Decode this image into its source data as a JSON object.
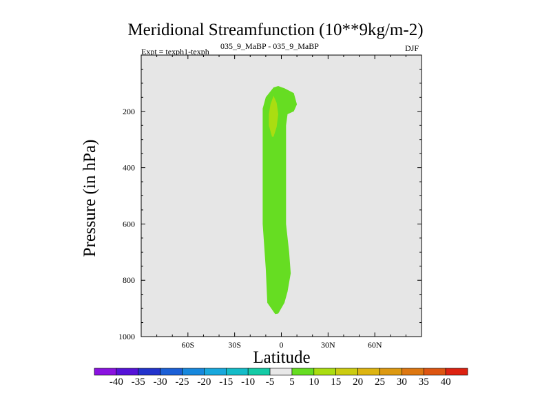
{
  "title": "Meridional Streamfunction (10**9kg/m-2)",
  "subtitle_left": "Expt = texph1-texph",
  "subtitle_super": "035_9_MaBP - 035_9_MaBP",
  "subtitle_right": "DJF",
  "colors": {
    "background": "#e6e6e6",
    "shade_5_10": "#66dd22",
    "shade_10_15": "#aadd11",
    "colorbar": [
      "#8a12e0",
      "#5512d8",
      "#2233cc",
      "#1b5fd6",
      "#1788dd",
      "#18a8dd",
      "#14bcc8",
      "#15cba6",
      "#e8e8e8",
      "#66dd22",
      "#aadd11",
      "#cccc11",
      "#ddb411",
      "#dd9911",
      "#dd7711",
      "#dd5511",
      "#dd2211"
    ]
  },
  "chart_data": {
    "type": "contour",
    "title": "Meridional Streamfunction (10**9kg/m-2)",
    "xlabel": "Latitude",
    "ylabel": "Pressure (in hPa)",
    "xlim": [
      -90,
      90
    ],
    "ylim": [
      1000,
      0
    ],
    "x_ticks": [
      -60,
      -30,
      0,
      30,
      60
    ],
    "x_tick_labels": [
      "60S",
      "30S",
      "0",
      "30N",
      "60N"
    ],
    "y_ticks": [
      200,
      400,
      600,
      800,
      1000
    ],
    "y_tick_labels": [
      "200",
      "400",
      "600",
      "800",
      "1000"
    ],
    "colorbar_levels": [
      -40,
      -35,
      -30,
      -25,
      -20,
      -15,
      -10,
      -5,
      5,
      10,
      15,
      20,
      25,
      30,
      35,
      40
    ],
    "colorbar_labels": [
      "-40",
      "-35",
      "-30",
      "-25",
      "-20",
      "-15",
      "-10",
      "-5",
      "5",
      "10",
      "15",
      "20",
      "25",
      "30",
      "35",
      "40"
    ],
    "regions": [
      {
        "level": "5-10",
        "outline": [
          [
            -4,
            920
          ],
          [
            -9,
            880
          ],
          [
            -10,
            760
          ],
          [
            -12,
            600
          ],
          [
            -12,
            450
          ],
          [
            -12,
            300
          ],
          [
            -12,
            190
          ],
          [
            -10,
            150
          ],
          [
            -5,
            115
          ],
          [
            -2,
            110
          ],
          [
            2,
            118
          ],
          [
            8,
            135
          ],
          [
            10,
            175
          ],
          [
            8,
            200
          ],
          [
            4,
            210
          ],
          [
            3,
            250
          ],
          [
            3,
            350
          ],
          [
            3,
            480
          ],
          [
            3,
            600
          ],
          [
            5,
            700
          ],
          [
            6,
            775
          ],
          [
            4,
            840
          ],
          [
            2,
            880
          ],
          [
            -2,
            918
          ]
        ]
      },
      {
        "level": "10-15",
        "outline": [
          [
            -6,
            290
          ],
          [
            -8,
            250
          ],
          [
            -8,
            210
          ],
          [
            -7,
            175
          ],
          [
            -5,
            145
          ],
          [
            -3,
            170
          ],
          [
            -2,
            210
          ],
          [
            -3,
            255
          ],
          [
            -5,
            290
          ]
        ]
      }
    ]
  }
}
